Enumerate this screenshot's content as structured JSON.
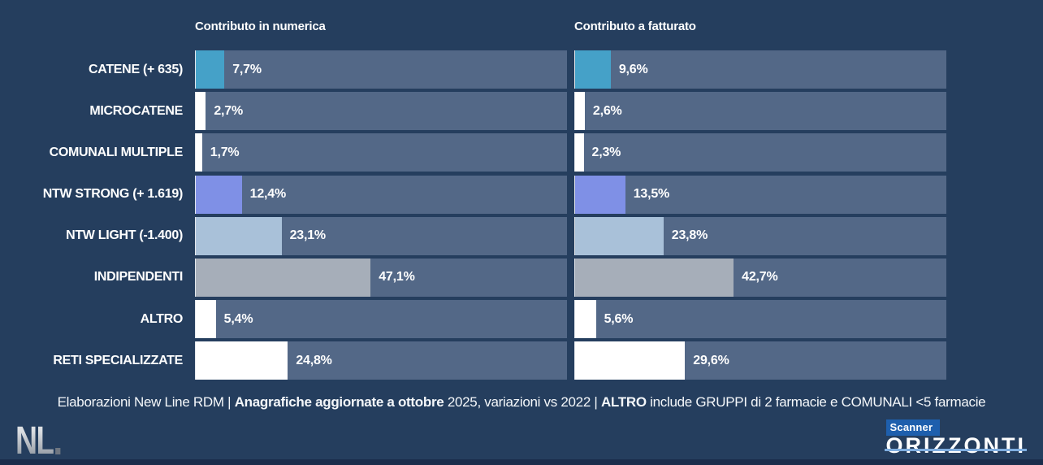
{
  "chart_data": {
    "type": "bar",
    "orientation": "horizontal",
    "categories": [
      "CATENE (+ 635)",
      "MICROCATENE",
      "COMUNALI MULTIPLE",
      "NTW STRONG (+ 1.619)",
      "NTW LIGHT (-1.400)",
      "INDIPENDENTI",
      "ALTRO",
      "RETI SPECIALIZZATE"
    ],
    "series": [
      {
        "name": "Contributo in numerica",
        "values": [
          7.7,
          2.7,
          1.7,
          12.4,
          23.1,
          47.1,
          5.4,
          24.8
        ],
        "display_labels": [
          "7,7%",
          "2,7%",
          "1,7%",
          "12,4%",
          "23,1%",
          "47,1%",
          "5,4%",
          "24,8%"
        ]
      },
      {
        "name": "Contributo a fatturato",
        "values": [
          9.6,
          2.6,
          2.3,
          13.5,
          23.8,
          42.7,
          5.6,
          29.6
        ],
        "display_labels": [
          "9,6%",
          "2,6%",
          "2,3%",
          "13,5%",
          "23,8%",
          "42,7%",
          "5,6%",
          "29,6%"
        ]
      }
    ],
    "xlim": [
      0,
      100
    ],
    "grid": false,
    "legend": "none",
    "bar_colors": [
      "#45A1C8",
      "#FFFFFF",
      "#FFFFFF",
      "#7F90E6",
      "#A9C1D9",
      "#A6AEB9",
      "#FFFFFF",
      "#FFFFFF"
    ],
    "track_color": "#536887"
  },
  "footer": {
    "segments": [
      {
        "text": "Elaborazioni New Line RDM | ",
        "bold": false
      },
      {
        "text": "Anagrafiche aggiornate a ottobre",
        "bold": true
      },
      {
        "text": " 2025, variazioni vs 2022 | ",
        "bold": false
      },
      {
        "text": "ALTRO",
        "bold": true
      },
      {
        "text": " include GRUPPI di 2 farmacie e COMUNALI <5 farmacie",
        "bold": false
      }
    ]
  },
  "branding": {
    "nl_logo_text": "NL",
    "scanner_label": "Scanner",
    "orizzonti_label": "ORIZZONTI"
  },
  "colors": {
    "background": "#253E5E",
    "track": "#536887",
    "accent_teal": "#45A1C8",
    "accent_periwinkle": "#7F90E6",
    "accent_steel_blue": "#A9C1D9",
    "accent_gray": "#A6AEB9",
    "bar_white": "#FFFFFF",
    "scanner_badge_blue": "#1E5FAD",
    "horizon_line_blue": "#7FAEE0",
    "bottom_strip": "#1B2D4C",
    "text": "#FFFFFF"
  }
}
